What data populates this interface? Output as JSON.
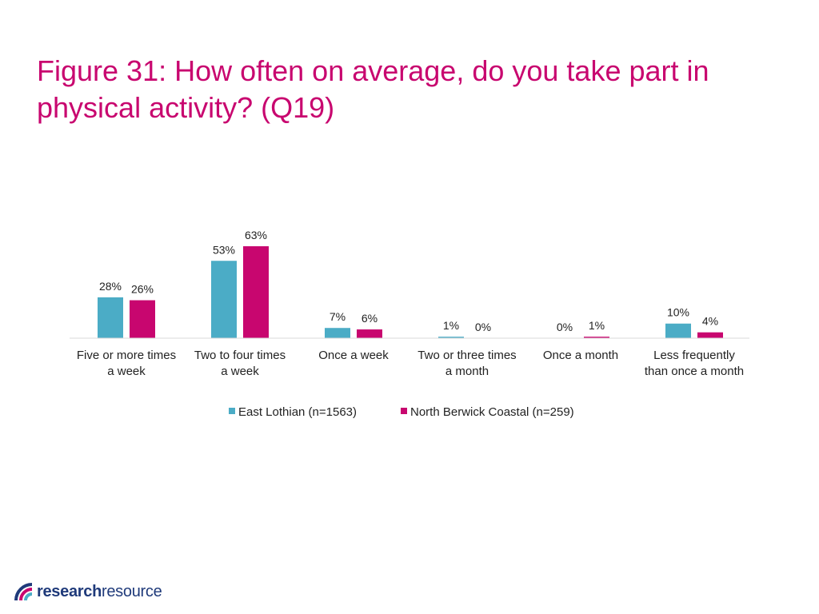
{
  "page": {
    "title": "Figure 31: How often on average, do you take part in physical activity? (Q19)"
  },
  "chart_data": {
    "type": "bar",
    "title": "Figure 31: How often on average, do you take part in physical activity? (Q19)",
    "categories": [
      [
        "Five or more times",
        "a week"
      ],
      [
        "Two to four times",
        "a week"
      ],
      [
        "Once a week"
      ],
      [
        "Two or three times",
        "a month"
      ],
      [
        "Once a month"
      ],
      [
        "Less frequently",
        "than once a month"
      ]
    ],
    "series": [
      {
        "name": "East Lothian (n=1563)",
        "color": "#4bacc6",
        "values": [
          28,
          53,
          7,
          1,
          0,
          10
        ],
        "labels": [
          "28%",
          "53%",
          "7%",
          "1%",
          "0%",
          "10%"
        ]
      },
      {
        "name": "North Berwick Coastal (n=259)",
        "color": "#c8066f",
        "values": [
          26,
          63,
          6,
          0,
          1,
          4
        ],
        "labels": [
          "26%",
          "63%",
          "6%",
          "0%",
          "1%",
          "4%"
        ]
      }
    ],
    "xlabel": "",
    "ylabel": "",
    "ylim": [
      0,
      63
    ],
    "grid": false,
    "legend": "bottom"
  },
  "logo": {
    "part1": "research",
    "part2": "resource",
    "icon": "research-resource-logo-icon"
  }
}
